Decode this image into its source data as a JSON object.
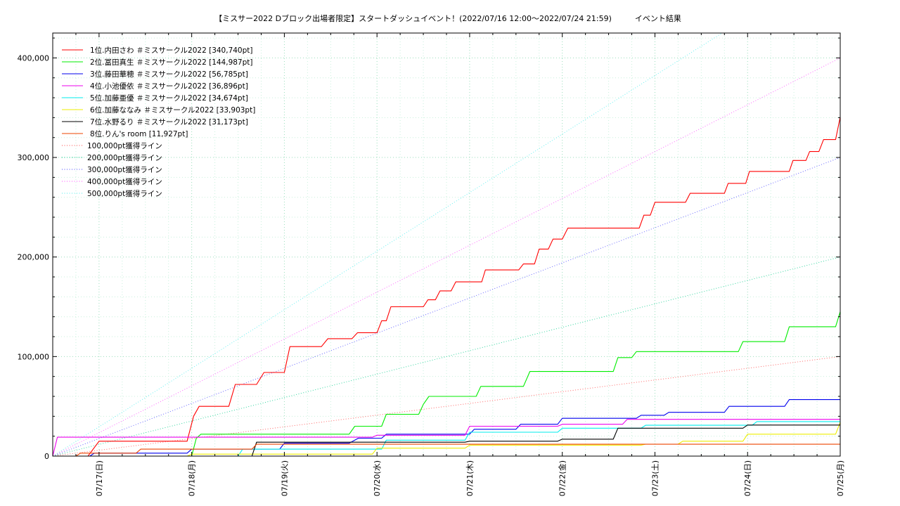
{
  "chart_data": {
    "type": "line",
    "title": "【ミスサー2022 Dブロック出場者限定】スタートダッシュイベント！(2022/07/16 12:00～2022/07/24 21:59)　　　イベント結果",
    "xlabel": "",
    "ylabel": "",
    "xlim": [
      0,
      8.5
    ],
    "ylim": [
      0,
      425000
    ],
    "x_ticks": [
      {
        "x": 0.5,
        "label": "07/17(日)"
      },
      {
        "x": 1.5,
        "label": "07/18(月)"
      },
      {
        "x": 2.5,
        "label": "07/19(火)"
      },
      {
        "x": 3.5,
        "label": "07/20(水)"
      },
      {
        "x": 4.5,
        "label": "07/21(木)"
      },
      {
        "x": 5.5,
        "label": "07/22(金)"
      },
      {
        "x": 6.5,
        "label": "07/23(土)"
      },
      {
        "x": 7.5,
        "label": "07/24(日)"
      },
      {
        "x": 8.5,
        "label": "07/25(月)"
      }
    ],
    "y_ticks": [
      {
        "y": 0,
        "label": "0"
      },
      {
        "y": 100000,
        "label": "100,000"
      },
      {
        "y": 200000,
        "label": "200,000"
      },
      {
        "y": 300000,
        "label": "300,000"
      },
      {
        "y": 400000,
        "label": "400,000"
      }
    ],
    "grid": true,
    "legend": "top-left",
    "series": [
      {
        "name": "1位.内田さわ ＃ミスサークル2022 [340,740pt]",
        "color": "#ff0000",
        "points": [
          [
            0.38,
            0
          ],
          [
            0.5,
            15000
          ],
          [
            1.45,
            15000
          ],
          [
            1.52,
            40000
          ],
          [
            1.58,
            50000
          ],
          [
            1.9,
            50000
          ],
          [
            1.97,
            72000
          ],
          [
            2.2,
            72000
          ],
          [
            2.28,
            84000
          ],
          [
            2.5,
            84000
          ],
          [
            2.56,
            110000
          ],
          [
            2.9,
            110000
          ],
          [
            2.97,
            118000
          ],
          [
            3.23,
            118000
          ],
          [
            3.29,
            124000
          ],
          [
            3.5,
            124000
          ],
          [
            3.55,
            136000
          ],
          [
            3.6,
            136000
          ],
          [
            3.65,
            150000
          ],
          [
            4.0,
            150000
          ],
          [
            4.05,
            157000
          ],
          [
            4.13,
            157000
          ],
          [
            4.18,
            166000
          ],
          [
            4.3,
            166000
          ],
          [
            4.35,
            175000
          ],
          [
            4.63,
            175000
          ],
          [
            4.67,
            187000
          ],
          [
            5.03,
            187000
          ],
          [
            5.08,
            193000
          ],
          [
            5.2,
            193000
          ],
          [
            5.25,
            208000
          ],
          [
            5.35,
            208000
          ],
          [
            5.4,
            218000
          ],
          [
            5.5,
            218000
          ],
          [
            5.56,
            229000
          ],
          [
            6.33,
            229000
          ],
          [
            6.38,
            242000
          ],
          [
            6.45,
            242000
          ],
          [
            6.5,
            255000
          ],
          [
            6.83,
            255000
          ],
          [
            6.88,
            264000
          ],
          [
            7.25,
            264000
          ],
          [
            7.29,
            274000
          ],
          [
            7.48,
            274000
          ],
          [
            7.52,
            286000
          ],
          [
            7.95,
            286000
          ],
          [
            7.99,
            297000
          ],
          [
            8.13,
            297000
          ],
          [
            8.17,
            306000
          ],
          [
            8.27,
            306000
          ],
          [
            8.32,
            318000
          ],
          [
            8.45,
            318000
          ],
          [
            8.5,
            340740
          ]
        ]
      },
      {
        "name": "2位.冨田真生 ＃ミスサークル2022 [144,987pt]",
        "color": "#00ee00",
        "points": [
          [
            1.5,
            0
          ],
          [
            1.55,
            18000
          ],
          [
            1.6,
            22000
          ],
          [
            3.2,
            22000
          ],
          [
            3.26,
            30000
          ],
          [
            3.55,
            30000
          ],
          [
            3.6,
            42000
          ],
          [
            3.95,
            42000
          ],
          [
            4.0,
            52000
          ],
          [
            4.06,
            60000
          ],
          [
            4.57,
            60000
          ],
          [
            4.62,
            70000
          ],
          [
            5.08,
            70000
          ],
          [
            5.15,
            85000
          ],
          [
            6.05,
            85000
          ],
          [
            6.1,
            99000
          ],
          [
            6.25,
            99000
          ],
          [
            6.3,
            105000
          ],
          [
            7.4,
            105000
          ],
          [
            7.45,
            115000
          ],
          [
            7.9,
            115000
          ],
          [
            7.95,
            130000
          ],
          [
            8.45,
            130000
          ],
          [
            8.5,
            144987
          ]
        ]
      },
      {
        "name": "3位.藤田華穂 ＃ミスサークル2022 [56,785pt]",
        "color": "#0000ee",
        "points": [
          [
            0.4,
            0
          ],
          [
            0.45,
            3000
          ],
          [
            1.45,
            3000
          ],
          [
            1.5,
            7000
          ],
          [
            2.45,
            7000
          ],
          [
            2.5,
            13000
          ],
          [
            3.2,
            13000
          ],
          [
            3.3,
            18000
          ],
          [
            3.55,
            18000
          ],
          [
            3.6,
            22000
          ],
          [
            4.5,
            22000
          ],
          [
            4.55,
            27000
          ],
          [
            5.0,
            27000
          ],
          [
            5.05,
            32000
          ],
          [
            5.45,
            32000
          ],
          [
            5.5,
            38000
          ],
          [
            6.3,
            38000
          ],
          [
            6.35,
            41000
          ],
          [
            6.6,
            41000
          ],
          [
            6.65,
            44000
          ],
          [
            7.25,
            44000
          ],
          [
            7.3,
            50000
          ],
          [
            7.9,
            50000
          ],
          [
            7.95,
            56785
          ],
          [
            8.5,
            56785
          ]
        ]
      },
      {
        "name": "4位.小池優依 ＃ミスサークル2022 [36,896pt]",
        "color": "#ee00ee",
        "points": [
          [
            0.0,
            0
          ],
          [
            0.05,
            19000
          ],
          [
            3.45,
            19000
          ],
          [
            3.5,
            21000
          ],
          [
            4.45,
            21000
          ],
          [
            4.5,
            30000
          ],
          [
            5.45,
            30000
          ],
          [
            5.5,
            32000
          ],
          [
            6.15,
            32000
          ],
          [
            6.2,
            36896
          ],
          [
            8.5,
            36896
          ]
        ]
      },
      {
        "name": "5位.加藤亜優 ＃ミスサークル2022 [34,674pt]",
        "color": "#00eeee",
        "points": [
          [
            2.0,
            0
          ],
          [
            2.05,
            7000
          ],
          [
            3.55,
            7000
          ],
          [
            3.6,
            16000
          ],
          [
            4.45,
            16000
          ],
          [
            4.5,
            24000
          ],
          [
            5.45,
            24000
          ],
          [
            5.5,
            28000
          ],
          [
            6.35,
            28000
          ],
          [
            6.4,
            31000
          ],
          [
            7.55,
            31000
          ],
          [
            7.6,
            34674
          ],
          [
            8.5,
            34674
          ]
        ]
      },
      {
        "name": "6位.加藤ななみ ＃ミスサークル2022 [33,903pt]",
        "color": "#eeee00",
        "points": [
          [
            1.45,
            0
          ],
          [
            1.5,
            2000
          ],
          [
            3.45,
            2000
          ],
          [
            3.5,
            8000
          ],
          [
            4.45,
            8000
          ],
          [
            4.5,
            11000
          ],
          [
            6.35,
            11000
          ],
          [
            6.4,
            12000
          ],
          [
            6.75,
            12000
          ],
          [
            6.8,
            15000
          ],
          [
            7.45,
            15000
          ],
          [
            7.5,
            22000
          ],
          [
            8.45,
            22000
          ],
          [
            8.5,
            33903
          ]
        ]
      },
      {
        "name": "7位.水野るり ＃ミスサークル2022 [31,173pt]",
        "color": "#000000",
        "points": [
          [
            2.15,
            0
          ],
          [
            2.2,
            14000
          ],
          [
            4.45,
            14000
          ],
          [
            4.5,
            15000
          ],
          [
            5.45,
            15000
          ],
          [
            5.5,
            17000
          ],
          [
            6.05,
            17000
          ],
          [
            6.1,
            28000
          ],
          [
            7.45,
            28000
          ],
          [
            7.5,
            31173
          ],
          [
            8.5,
            31173
          ]
        ]
      },
      {
        "name": "8位.りん's room [11,927pt]",
        "color": "#ee4400",
        "points": [
          [
            0.25,
            0
          ],
          [
            0.3,
            3000
          ],
          [
            0.9,
            3000
          ],
          [
            0.95,
            7000
          ],
          [
            2.15,
            7000
          ],
          [
            2.2,
            11927
          ],
          [
            8.5,
            11927
          ]
        ]
      }
    ],
    "reference_lines": [
      {
        "name": "100,000pt獲得ライン",
        "color": "#ff4444",
        "start": [
          0.0,
          0
        ],
        "end": [
          8.5,
          100000
        ]
      },
      {
        "name": "200,000pt獲得ライン",
        "color": "#00cc88",
        "start": [
          0.0,
          0
        ],
        "end": [
          8.5,
          200000
        ]
      },
      {
        "name": "300,000pt獲得ライン",
        "color": "#4444ff",
        "start": [
          0.0,
          0
        ],
        "end": [
          8.5,
          300000
        ]
      },
      {
        "name": "400,000pt獲得ライン",
        "color": "#ff44ff",
        "start": [
          0.0,
          0
        ],
        "end": [
          8.5,
          400000
        ]
      },
      {
        "name": "500,000pt獲得ライン",
        "color": "#44eeee",
        "start": [
          0.0,
          0
        ],
        "end": [
          8.5,
          500000
        ]
      }
    ]
  }
}
